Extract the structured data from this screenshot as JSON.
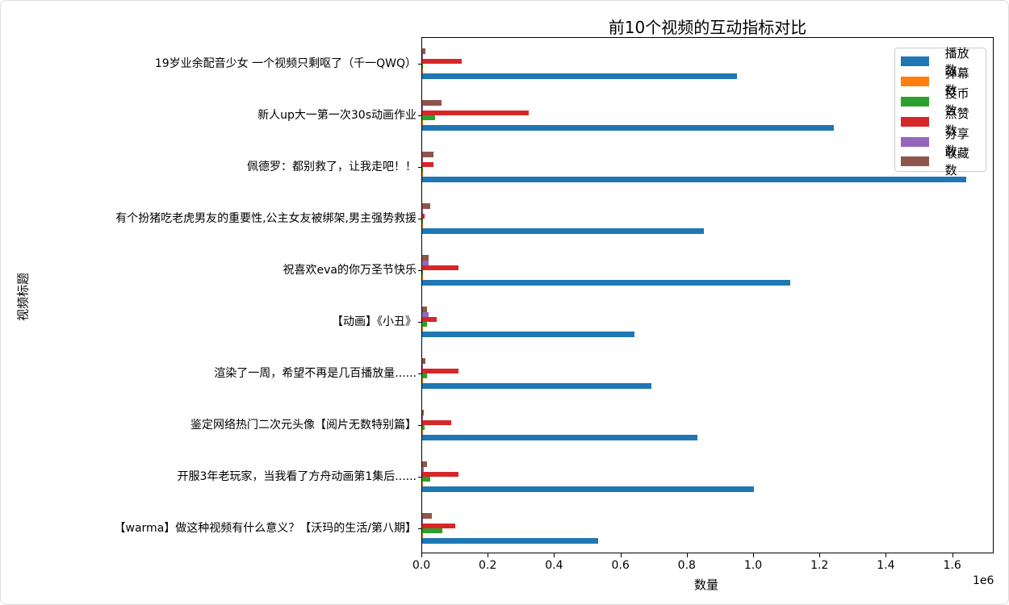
{
  "chart_data": {
    "type": "bar",
    "orientation": "horizontal",
    "title": "前10个视频的互动指标对比",
    "xlabel": "数量",
    "ylabel": "视频标题",
    "x_offset_label": "1e6",
    "xlim": [
      0,
      1725000
    ],
    "xticks": [
      0,
      200000,
      400000,
      600000,
      800000,
      1000000,
      1200000,
      1400000,
      1600000
    ],
    "xtick_labels": [
      "0.0",
      "0.2",
      "0.4",
      "0.6",
      "0.8",
      "1.0",
      "1.2",
      "1.4",
      "1.6"
    ],
    "grid": false,
    "legend_position": "upper right",
    "categories": [
      "【warma】做这种视频有什么意义？【沃玛的生活/第八期】",
      "开服3年老玩家，当我看了方舟动画第1集后......",
      "鉴定网络热门二次元头像【阅片无数特别篇】",
      "渲染了一周，希望不再是几百播放量......",
      "【动画】《小丑》",
      "祝喜欢eva的你万圣节快乐",
      "有个扮猪吃老虎男友的重要性,公主女友被绑架,男主强势救援",
      "佩德罗：都别救了，让我走吧！！",
      "新人up大一第一次30s动画作业",
      "19岁业余配音少女 一个视频只剩呕了（千一QWQ）"
    ],
    "series": [
      {
        "name": "播放数",
        "color": "#1f77b4",
        "values": [
          530000,
          1000000,
          830000,
          690000,
          640000,
          1110000,
          850000,
          1640000,
          1240000,
          950000
        ]
      },
      {
        "name": "弹幕数",
        "color": "#ff7f0e",
        "values": [
          3000,
          3000,
          3000,
          1000,
          1000,
          1000,
          500,
          500,
          1000,
          500
        ]
      },
      {
        "name": "投币数",
        "color": "#2ca02c",
        "values": [
          62000,
          24000,
          8000,
          15000,
          14000,
          3000,
          1000,
          1000,
          38000,
          1000
        ]
      },
      {
        "name": "点赞数",
        "color": "#d62728",
        "values": [
          100000,
          110000,
          88000,
          110000,
          45000,
          110000,
          7000,
          35000,
          320000,
          120000
        ]
      },
      {
        "name": "分享数",
        "color": "#9467bd",
        "values": [
          3000,
          5000,
          1000,
          1000,
          20000,
          20000,
          1000,
          1000,
          2000,
          500
        ]
      },
      {
        "name": "收藏数",
        "color": "#8c564b",
        "values": [
          28000,
          14000,
          6000,
          9000,
          14000,
          20000,
          24000,
          33000,
          58000,
          10000
        ]
      }
    ]
  }
}
